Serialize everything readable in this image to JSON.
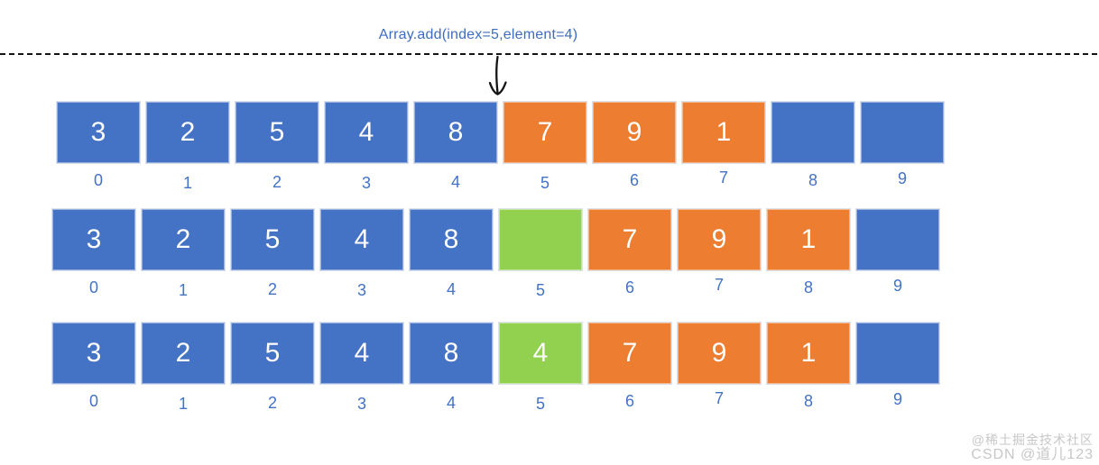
{
  "title": "Array.add(index=5,element=4)",
  "colors": {
    "blue": "#4472C4",
    "orange": "#ED7D31",
    "green": "#92D050"
  },
  "rows": [
    {
      "name": "before-insert",
      "cells": [
        {
          "value": "3",
          "color": "blue"
        },
        {
          "value": "2",
          "color": "blue"
        },
        {
          "value": "5",
          "color": "blue"
        },
        {
          "value": "4",
          "color": "blue"
        },
        {
          "value": "8",
          "color": "blue"
        },
        {
          "value": "7",
          "color": "orange"
        },
        {
          "value": "9",
          "color": "orange"
        },
        {
          "value": "1",
          "color": "orange"
        },
        {
          "value": "",
          "color": "blue"
        },
        {
          "value": "",
          "color": "blue"
        }
      ],
      "indices": [
        "0",
        "1",
        "2",
        "3",
        "4",
        "5",
        "6",
        "7",
        "8",
        "9"
      ]
    },
    {
      "name": "shift-right",
      "cells": [
        {
          "value": "3",
          "color": "blue"
        },
        {
          "value": "2",
          "color": "blue"
        },
        {
          "value": "5",
          "color": "blue"
        },
        {
          "value": "4",
          "color": "blue"
        },
        {
          "value": "8",
          "color": "blue"
        },
        {
          "value": "",
          "color": "green"
        },
        {
          "value": "7",
          "color": "orange"
        },
        {
          "value": "9",
          "color": "orange"
        },
        {
          "value": "1",
          "color": "orange"
        },
        {
          "value": "",
          "color": "blue"
        }
      ],
      "indices": [
        "0",
        "1",
        "2",
        "3",
        "4",
        "5",
        "6",
        "7",
        "8",
        "9"
      ]
    },
    {
      "name": "after-insert",
      "cells": [
        {
          "value": "3",
          "color": "blue"
        },
        {
          "value": "2",
          "color": "blue"
        },
        {
          "value": "5",
          "color": "blue"
        },
        {
          "value": "4",
          "color": "blue"
        },
        {
          "value": "8",
          "color": "blue"
        },
        {
          "value": "4",
          "color": "green"
        },
        {
          "value": "7",
          "color": "orange"
        },
        {
          "value": "9",
          "color": "orange"
        },
        {
          "value": "1",
          "color": "orange"
        },
        {
          "value": "",
          "color": "blue"
        }
      ],
      "indices": [
        "0",
        "1",
        "2",
        "3",
        "4",
        "5",
        "6",
        "7",
        "8",
        "9"
      ]
    }
  ],
  "watermark": {
    "line1": "@稀土掘金技术社区",
    "line2": "CSDN @道儿123"
  }
}
